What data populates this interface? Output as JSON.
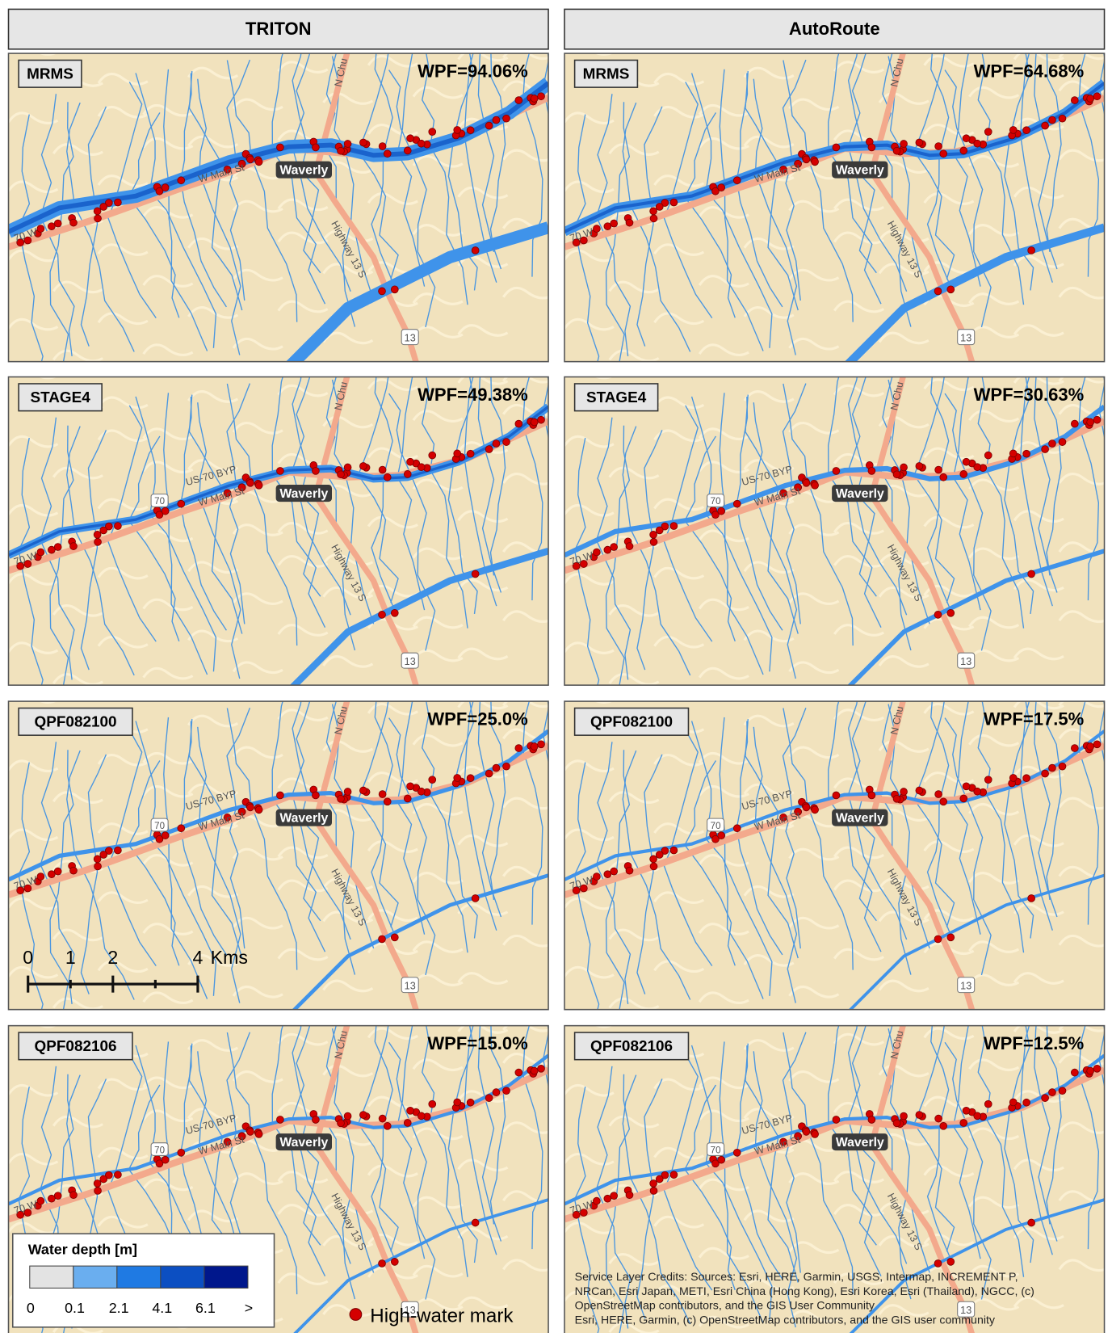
{
  "columns": [
    "TRITON",
    "AutoRoute"
  ],
  "rows": [
    {
      "label": "MRMS",
      "wpf": [
        "WPF=94.06%",
        "WPF=64.68%"
      ]
    },
    {
      "label": "STAGE4",
      "wpf": [
        "WPF=49.38%",
        "WPF=30.63%"
      ]
    },
    {
      "label": "QPF082100",
      "wpf": [
        "WPF=25.0%",
        "WPF=17.5%"
      ]
    },
    {
      "label": "QPF082106",
      "wpf": [
        "WPF=15.0%",
        "WPF=12.5%"
      ]
    }
  ],
  "map_labels": {
    "town": "Waverly",
    "street": "W Main St",
    "highway": "Highway 13 S",
    "north_road": "N Chu",
    "us_route": "US-70 BYP",
    "route_shield": "13",
    "us_shield": "70",
    "west_road": "70 W"
  },
  "scale_bar": {
    "labels": [
      "0",
      "1",
      "2",
      "4"
    ],
    "unit": "Kms"
  },
  "legend": {
    "title": "Water depth [m]",
    "classes": [
      "0",
      "0.1",
      "2.1",
      "4.1",
      "6.1",
      ">"
    ],
    "marker": "High-water mark"
  },
  "credits": [
    "Service Layer Credits: Sources: Esri, HERE, Garmin, USGS, Intermap, INCREMENT P,",
    "NRCan, Esri Japan, METI, Esri China (Hong Kong), Esri Korea, Esri (Thailand), NGCC, (c)",
    "OpenStreetMap contributors, and the GIS User Community",
    "Esri, HERE, Garmin, (c) OpenStreetMap contributors, and the GIS user community"
  ]
}
